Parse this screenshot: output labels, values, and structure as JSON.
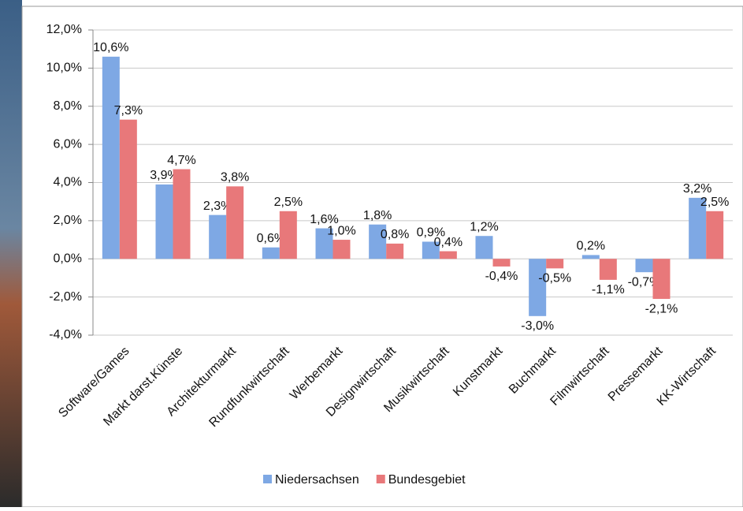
{
  "chart_data": {
    "type": "bar",
    "categories": [
      "Software/Games",
      "Markt darst.Künste",
      "Architekturmarkt",
      "Rundfunkwirtschaft",
      "Werbemarkt",
      "Designwirtschaft",
      "Musikwirtschaft",
      "Kunstmarkt",
      "Buchmarkt",
      "Filmwirtschaft",
      "Pressemarkt",
      "KK-Wirtschaft"
    ],
    "series": [
      {
        "name": "Niedersachsen",
        "color": "#7ea8e4",
        "values": [
          10.6,
          3.9,
          2.3,
          0.6,
          1.6,
          1.8,
          0.9,
          1.2,
          -3.0,
          0.2,
          -0.7,
          3.2
        ],
        "value_labels": [
          "10,6%",
          "3,9%",
          "2,3%",
          "0,6%",
          "1,6%",
          "1,8%",
          "0,9%",
          "1,2%",
          "-3,0%",
          "0,2%",
          "-0,7%",
          "3,2%"
        ]
      },
      {
        "name": "Bundesgebiet",
        "color": "#e8787a",
        "values": [
          7.3,
          4.7,
          3.8,
          2.5,
          1.0,
          0.8,
          0.4,
          -0.4,
          -0.5,
          -1.1,
          -2.1,
          2.5
        ],
        "value_labels": [
          "7,3%",
          "4,7%",
          "3,8%",
          "2,5%",
          "1,0%",
          "0,8%",
          "0,4%",
          "-0,4%",
          "-0,5%",
          "-1,1%",
          "-2,1%",
          "2,5%"
        ]
      }
    ],
    "ylim": [
      -4,
      12
    ],
    "yticks": [
      {
        "value": -4,
        "label": "-4,0%"
      },
      {
        "value": -2,
        "label": "-2,0%"
      },
      {
        "value": 0,
        "label": "0,0%"
      },
      {
        "value": 2,
        "label": "2,0%"
      },
      {
        "value": 4,
        "label": "4,0%"
      },
      {
        "value": 6,
        "label": "6,0%"
      },
      {
        "value": 8,
        "label": "8,0%"
      },
      {
        "value": 10,
        "label": "10,0%"
      },
      {
        "value": 12,
        "label": "12,0%"
      }
    ],
    "grid": true,
    "legend": "bottom"
  }
}
